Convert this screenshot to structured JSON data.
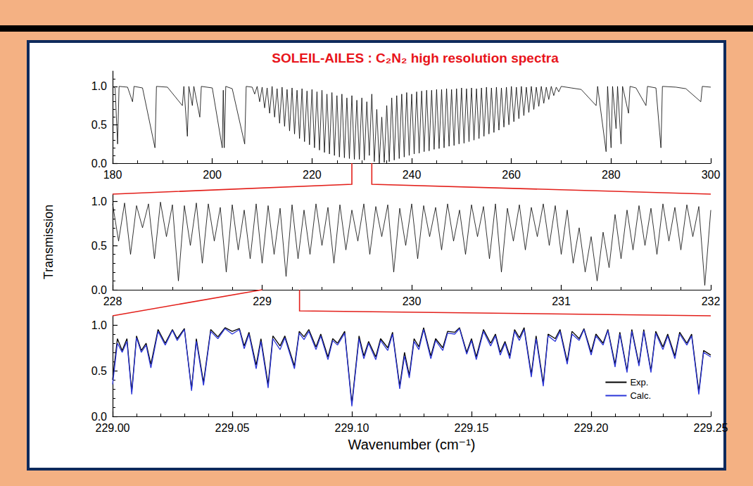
{
  "chart_data": [
    {
      "type": "line",
      "title": "SOLEIL-AILES : C₂N₂ high resolution spectra",
      "x": [
        180,
        180.5,
        181,
        181.3,
        183,
        184,
        184.3,
        186,
        188.5,
        188.8,
        191,
        194,
        194.3,
        195,
        195.3,
        196,
        196.3,
        197.5,
        197.8,
        200,
        202,
        202.2,
        202.4,
        202.7,
        204,
        206.5,
        206.8,
        208,
        208.5,
        209,
        209.5,
        210,
        210.5,
        211,
        211.5,
        212,
        212.5,
        213,
        213.5,
        214,
        214.5,
        215,
        215.5,
        216,
        216.5,
        217,
        217.5,
        218,
        218.5,
        219,
        219.5,
        220,
        220.5,
        221,
        221.5,
        222,
        222.5,
        223,
        223.5,
        224,
        224.5,
        225,
        225.5,
        226,
        226.5,
        227,
        227.5,
        228,
        228.5,
        229,
        229.5,
        230,
        230.5,
        231,
        231.5,
        232,
        232.5,
        233,
        233.5,
        234,
        234.5,
        235,
        235.5,
        236,
        236.5,
        237,
        237.5,
        238,
        238.5,
        239,
        239.5,
        240,
        240.5,
        241,
        241.5,
        242,
        242.5,
        243,
        243.5,
        244,
        244.5,
        245,
        245.5,
        246,
        246.5,
        247,
        247.5,
        248,
        248.5,
        249,
        249.5,
        250,
        250.5,
        251,
        251.5,
        252,
        252.5,
        253,
        253.5,
        254,
        254.5,
        255,
        255.5,
        256,
        256.5,
        257,
        257.5,
        258,
        258.5,
        259,
        259.5,
        260,
        260.5,
        261,
        261.5,
        262,
        262.5,
        263,
        263.5,
        264,
        264.5,
        265,
        265.5,
        266,
        266.5,
        267,
        267.5,
        268,
        268.5,
        269,
        269.5,
        270,
        272,
        274,
        277,
        277.3,
        279,
        279.3,
        280,
        280.3,
        281,
        281.3,
        282,
        282.3,
        283.5,
        283.8,
        285,
        287,
        287.3,
        289,
        290,
        290.3,
        293,
        295,
        298,
        298.3,
        300
      ],
      "series": [
        {
          "color": "#000000",
          "values": [
            1.0,
            0.98,
            0.25,
            1.0,
            0.99,
            0.8,
            1.0,
            0.98,
            0.2,
            1.0,
            0.99,
            0.75,
            1.0,
            0.35,
            1.0,
            0.75,
            1.0,
            0.6,
            1.0,
            0.98,
            0.2,
            0.95,
            0.2,
            1.0,
            0.97,
            0.25,
            1.0,
            0.99,
            0.9,
            1.0,
            0.8,
            0.99,
            0.72,
            0.98,
            0.65,
            1.0,
            0.6,
            0.97,
            0.52,
            0.99,
            0.48,
            0.96,
            0.42,
            0.98,
            0.38,
            0.95,
            0.32,
            0.97,
            0.28,
            0.94,
            0.24,
            0.96,
            0.2,
            0.93,
            0.17,
            0.95,
            0.14,
            0.9,
            0.12,
            0.92,
            0.1,
            0.88,
            0.08,
            0.9,
            0.07,
            0.85,
            0.06,
            0.88,
            0.05,
            0.82,
            0.05,
            0.85,
            0.04,
            0.8,
            0.1,
            0.9,
            0.02,
            0.7,
            0.0,
            0.6,
            0.01,
            0.75,
            0.02,
            0.85,
            0.04,
            0.88,
            0.06,
            0.9,
            0.08,
            0.92,
            0.1,
            0.9,
            0.12,
            0.93,
            0.13,
            0.94,
            0.15,
            0.95,
            0.16,
            0.95,
            0.18,
            0.96,
            0.19,
            0.96,
            0.2,
            0.97,
            0.22,
            0.96,
            0.23,
            0.97,
            0.25,
            0.98,
            0.26,
            0.97,
            0.28,
            0.98,
            0.3,
            0.97,
            0.32,
            0.98,
            0.35,
            0.99,
            0.38,
            0.98,
            0.4,
            0.99,
            0.43,
            0.98,
            0.47,
            0.99,
            0.5,
            1.0,
            0.54,
            0.99,
            0.58,
            1.0,
            0.62,
            0.99,
            0.66,
            1.0,
            0.7,
            0.99,
            0.74,
            1.0,
            0.78,
            0.99,
            0.83,
            1.0,
            0.88,
            0.99,
            0.93,
            1.0,
            0.98,
            0.96,
            0.75,
            1.0,
            0.15,
            1.0,
            0.2,
            1.0,
            0.45,
            1.0,
            0.25,
            1.0,
            0.65,
            1.0,
            0.98,
            0.75,
            1.0,
            0.98,
            0.2,
            1.0,
            0.99,
            0.97,
            0.8,
            1.0,
            0.99
          ]
        }
      ],
      "xlim": [
        180,
        300
      ],
      "xticks": [
        180,
        200,
        220,
        240,
        260,
        280,
        300
      ],
      "ylim": [
        0,
        1.2
      ],
      "yticks": [
        {
          "value": 0,
          "label": "0.0"
        },
        {
          "value": 0.5,
          "label": "0.5"
        },
        {
          "value": 1,
          "label": "1.0"
        }
      ],
      "grid": false
    },
    {
      "type": "line",
      "ylabel": "Transmission",
      "x": [
        228,
        228.04,
        228.08,
        228.12,
        228.16,
        228.2,
        228.24,
        228.28,
        228.32,
        228.36,
        228.4,
        228.44,
        228.48,
        228.52,
        228.56,
        228.6,
        228.64,
        228.68,
        228.72,
        228.76,
        228.8,
        228.84,
        228.88,
        228.92,
        228.96,
        229,
        229.04,
        229.08,
        229.12,
        229.16,
        229.2,
        229.24,
        229.28,
        229.32,
        229.36,
        229.4,
        229.44,
        229.48,
        229.52,
        229.56,
        229.6,
        229.64,
        229.68,
        229.72,
        229.76,
        229.8,
        229.84,
        229.88,
        229.92,
        229.96,
        230,
        230.04,
        230.08,
        230.12,
        230.16,
        230.2,
        230.24,
        230.28,
        230.32,
        230.36,
        230.4,
        230.44,
        230.48,
        230.52,
        230.56,
        230.6,
        230.64,
        230.68,
        230.72,
        230.76,
        230.8,
        230.84,
        230.88,
        230.92,
        230.96,
        231,
        231.04,
        231.08,
        231.12,
        231.16,
        231.2,
        231.24,
        231.28,
        231.32,
        231.36,
        231.4,
        231.44,
        231.48,
        231.52,
        231.56,
        231.6,
        231.64,
        231.68,
        231.72,
        231.76,
        231.8,
        231.84,
        231.88,
        231.92,
        231.96,
        232
      ],
      "series": [
        {
          "color": "#000000",
          "values": [
            0.97,
            0.55,
            0.98,
            0.4,
            0.95,
            0.7,
            0.97,
            0.35,
            0.99,
            0.6,
            0.96,
            0.1,
            0.95,
            0.5,
            0.98,
            0.3,
            0.97,
            0.55,
            0.93,
            0.2,
            0.96,
            0.45,
            0.9,
            0.35,
            0.97,
            0.3,
            0.95,
            0.4,
            0.92,
            0.15,
            0.96,
            0.35,
            0.9,
            0.4,
            0.97,
            0.5,
            0.93,
            0.3,
            0.96,
            0.45,
            0.9,
            0.55,
            0.97,
            0.4,
            0.94,
            0.6,
            0.96,
            0.2,
            0.92,
            0.5,
            0.97,
            0.35,
            0.95,
            0.6,
            0.93,
            0.45,
            0.97,
            0.55,
            0.9,
            0.4,
            0.96,
            0.6,
            0.94,
            0.35,
            0.97,
            0.2,
            0.92,
            0.55,
            0.96,
            0.45,
            0.93,
            0.6,
            0.97,
            0.5,
            0.95,
            0.4,
            0.9,
            0.3,
            0.7,
            0.2,
            0.6,
            0.1,
            0.65,
            0.25,
            0.85,
            0.35,
            0.9,
            0.45,
            0.95,
            0.5,
            0.92,
            0.4,
            0.97,
            0.55,
            0.93,
            0.45,
            0.96,
            0.6,
            0.94,
            0.05,
            0.9
          ]
        }
      ],
      "xlim": [
        228,
        232
      ],
      "xticks": [
        228,
        229,
        230,
        231,
        232
      ],
      "ylim": [
        0,
        1.08
      ],
      "yticks": [
        {
          "value": 0,
          "label": "0.0"
        },
        {
          "value": 0.5,
          "label": "0.5"
        },
        {
          "value": 1,
          "label": "1.0"
        }
      ],
      "grid": false
    },
    {
      "type": "line",
      "xlabel": "Wavenumber (cm⁻¹)",
      "legend": "lower right",
      "x": [
        229,
        229.002,
        229.004,
        229.006,
        229.008,
        229.01,
        229.012,
        229.014,
        229.016,
        229.019,
        229.022,
        229.025,
        229.027,
        229.03,
        229.033,
        229.035,
        229.038,
        229.041,
        229.044,
        229.047,
        229.05,
        229.053,
        229.055,
        229.057,
        229.06,
        229.062,
        229.065,
        229.067,
        229.07,
        229.072,
        229.076,
        229.078,
        229.08,
        229.082,
        229.085,
        229.087,
        229.09,
        229.092,
        229.094,
        229.097,
        229.1,
        229.103,
        229.105,
        229.107,
        229.11,
        229.112,
        229.115,
        229.117,
        229.12,
        229.122,
        229.124,
        229.126,
        229.128,
        229.13,
        229.133,
        229.135,
        229.138,
        229.14,
        229.143,
        229.145,
        229.148,
        229.15,
        229.152,
        229.155,
        229.158,
        229.16,
        229.162,
        229.164,
        229.166,
        229.168,
        229.17,
        229.172,
        229.175,
        229.177,
        229.18,
        229.182,
        229.185,
        229.187,
        229.19,
        229.192,
        229.195,
        229.197,
        229.2,
        229.202,
        229.205,
        229.207,
        229.21,
        229.212,
        229.215,
        229.217,
        229.22,
        229.222,
        229.225,
        229.227,
        229.23,
        229.232,
        229.235,
        229.237,
        229.24,
        229.242,
        229.245,
        229.247,
        229.25
      ],
      "series": [
        {
          "name": "Exp.",
          "color": "#000000",
          "values": [
            0.4,
            0.85,
            0.72,
            0.85,
            0.27,
            0.88,
            0.72,
            0.8,
            0.57,
            0.95,
            0.8,
            0.95,
            0.85,
            0.96,
            0.3,
            0.85,
            0.37,
            0.95,
            0.87,
            0.97,
            0.93,
            0.96,
            0.77,
            0.92,
            0.56,
            0.85,
            0.35,
            0.88,
            0.77,
            0.88,
            0.55,
            0.93,
            0.87,
            0.95,
            0.76,
            0.9,
            0.65,
            0.85,
            0.8,
            0.93,
            0.14,
            0.88,
            0.66,
            0.82,
            0.65,
            0.85,
            0.75,
            0.92,
            0.33,
            0.7,
            0.45,
            0.85,
            0.76,
            0.97,
            0.66,
            0.85,
            0.75,
            0.93,
            0.92,
            0.97,
            0.7,
            0.85,
            0.65,
            0.95,
            0.8,
            0.9,
            0.7,
            0.82,
            0.66,
            0.95,
            0.86,
            0.97,
            0.46,
            0.88,
            0.36,
            0.9,
            0.85,
            0.95,
            0.6,
            0.93,
            0.85,
            0.96,
            0.7,
            0.9,
            0.8,
            0.95,
            0.57,
            0.92,
            0.5,
            0.95,
            0.57,
            0.95,
            0.5,
            0.93,
            0.76,
            0.9,
            0.66,
            0.92,
            0.8,
            0.9,
            0.27,
            0.72,
            0.67
          ]
        },
        {
          "name": "Calc.",
          "color": "#2b35d8",
          "values": [
            0.35,
            0.8,
            0.7,
            0.82,
            0.24,
            0.86,
            0.7,
            0.78,
            0.53,
            0.93,
            0.78,
            0.94,
            0.83,
            0.95,
            0.28,
            0.82,
            0.34,
            0.93,
            0.85,
            0.96,
            0.9,
            0.95,
            0.74,
            0.9,
            0.52,
            0.82,
            0.31,
            0.85,
            0.73,
            0.86,
            0.52,
            0.91,
            0.84,
            0.93,
            0.73,
            0.88,
            0.62,
            0.83,
            0.78,
            0.91,
            0.11,
            0.85,
            0.63,
            0.8,
            0.62,
            0.83,
            0.72,
            0.9,
            0.3,
            0.66,
            0.42,
            0.82,
            0.73,
            0.95,
            0.63,
            0.83,
            0.72,
            0.91,
            0.9,
            0.96,
            0.68,
            0.83,
            0.62,
            0.93,
            0.77,
            0.88,
            0.67,
            0.8,
            0.63,
            0.93,
            0.83,
            0.95,
            0.43,
            0.85,
            0.33,
            0.88,
            0.82,
            0.93,
            0.57,
            0.9,
            0.83,
            0.95,
            0.67,
            0.88,
            0.78,
            0.94,
            0.54,
            0.9,
            0.48,
            0.93,
            0.55,
            0.93,
            0.48,
            0.91,
            0.73,
            0.88,
            0.63,
            0.9,
            0.78,
            0.88,
            0.24,
            0.7,
            0.65
          ]
        }
      ],
      "xlim": [
        229,
        229.25
      ],
      "xticks": [
        {
          "value": 229,
          "label": "229.00"
        },
        {
          "value": 229.05,
          "label": "229.05"
        },
        {
          "value": 229.1,
          "label": "229.10"
        },
        {
          "value": 229.15,
          "label": "229.15"
        },
        {
          "value": 229.2,
          "label": "229.20"
        },
        {
          "value": 229.25,
          "label": "229.25"
        }
      ],
      "ylim": [
        0,
        1.1
      ],
      "yticks": [
        {
          "value": 0,
          "label": "0.0"
        },
        {
          "value": 0.5,
          "label": "0.5"
        },
        {
          "value": 1,
          "label": "1.0"
        }
      ],
      "grid": false
    }
  ]
}
